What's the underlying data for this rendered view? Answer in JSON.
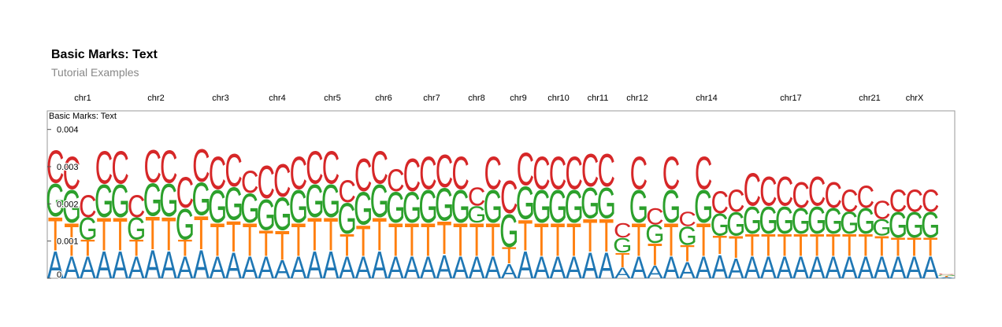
{
  "header": {
    "title": "Basic Marks: Text",
    "subtitle": "Tutorial Examples"
  },
  "chart_data": {
    "type": "stacked-text",
    "title": "Basic Marks: Text",
    "ylim": [
      0,
      0.0045
    ],
    "y_ticks": [
      0,
      0.001,
      0.002,
      0.003,
      0.004
    ],
    "y_tick_labels": [
      "0",
      "0.001",
      "0.002",
      "0.003",
      "0.004"
    ],
    "chromosome_labels": [
      "chr1",
      "chr2",
      "chr3",
      "chr4",
      "chr5",
      "chr6",
      "chr7",
      "chr8",
      "chr9",
      "chr10",
      "chr11",
      "chr12",
      "chr14",
      "chr17",
      "chr21",
      "chrX"
    ],
    "series": [
      {
        "name": "A",
        "color": "#1f77b4",
        "values": [
          0.00075,
          0.0006,
          0.0006,
          0.00075,
          0.00075,
          0.0006,
          0.00078,
          0.00075,
          0.0006,
          0.00078,
          0.0006,
          0.00072,
          0.0006,
          0.0006,
          0.0005,
          0.0006,
          0.00075,
          0.00075,
          0.0006,
          0.0006,
          0.00075,
          0.0006,
          0.0006,
          0.0006,
          0.00065,
          0.0006,
          0.0006,
          0.0006,
          0.0004,
          0.00075,
          0.0006,
          0.0006,
          0.0006,
          0.00072,
          0.00072,
          0.0003,
          0.0006,
          0.00035,
          0.0006,
          0.00045,
          0.0006,
          0.00065,
          0.00055,
          0.0006,
          0.0006,
          0.0006,
          0.0006,
          0.0006,
          0.0006,
          0.0006,
          0.0006,
          0.0006,
          0.0006,
          0.0006,
          0.0006,
          3e-05
        ]
      },
      {
        "name": "T",
        "color": "#ff7f0e",
        "values": [
          0.00092,
          0.0009,
          0.00045,
          0.0009,
          0.0009,
          0.00045,
          0.0009,
          0.00092,
          0.00045,
          0.00092,
          0.0009,
          0.00085,
          0.0009,
          0.0007,
          0.0008,
          0.0009,
          0.0009,
          0.0009,
          0.0006,
          0.00085,
          0.0009,
          0.0009,
          0.0009,
          0.0009,
          0.0009,
          0.0009,
          0.0009,
          0.0009,
          0.00045,
          0.00085,
          0.0009,
          0.0009,
          0.0009,
          0.0009,
          0.0009,
          0.0004,
          0.0009,
          0.0006,
          0.0009,
          0.00045,
          0.0009,
          0.0005,
          0.0006,
          0.0006,
          0.0006,
          0.0006,
          0.0006,
          0.0006,
          0.0006,
          0.0006,
          0.0006,
          0.00055,
          0.0005,
          0.0005,
          0.0005,
          3e-05
        ]
      },
      {
        "name": "G",
        "color": "#2ca02c",
        "values": [
          0.0009,
          0.0009,
          0.0006,
          0.0009,
          0.0009,
          0.0006,
          0.0009,
          0.0009,
          0.00085,
          0.0009,
          0.0009,
          0.0009,
          0.0008,
          0.00085,
          0.0009,
          0.0009,
          0.0009,
          0.0009,
          0.00085,
          0.0009,
          0.0009,
          0.00085,
          0.00085,
          0.0009,
          0.0009,
          0.0009,
          0.00045,
          0.0009,
          0.0009,
          0.0009,
          0.0009,
          0.0009,
          0.0009,
          0.00085,
          0.00085,
          0.0004,
          0.0009,
          0.0005,
          0.0009,
          0.0005,
          0.0009,
          0.0006,
          0.00065,
          0.00075,
          0.00075,
          0.00075,
          0.0007,
          0.00075,
          0.0007,
          0.0006,
          0.0007,
          0.00045,
          0.0007,
          0.0007,
          0.0007,
          3e-05
        ]
      },
      {
        "name": "C",
        "color": "#d62728",
        "values": [
          0.0009,
          0.0009,
          0.0006,
          0.0009,
          0.0009,
          0.0006,
          0.0009,
          0.0009,
          0.00085,
          0.0009,
          0.0009,
          0.0009,
          0.0006,
          0.0009,
          0.0009,
          0.0009,
          0.0009,
          0.0009,
          0.0006,
          0.0009,
          0.0009,
          0.0006,
          0.0009,
          0.0009,
          0.0009,
          0.0009,
          0.0005,
          0.0009,
          0.0009,
          0.0009,
          0.0009,
          0.0009,
          0.0009,
          0.0009,
          0.0009,
          0.0004,
          0.0009,
          0.00045,
          0.0009,
          0.0004,
          0.0009,
          0.0006,
          0.0006,
          0.0009,
          0.0008,
          0.0008,
          0.0007,
          0.0008,
          0.0007,
          0.0006,
          0.0006,
          0.0005,
          0.0006,
          0.0006,
          0.0006,
          3e-05
        ]
      }
    ]
  }
}
